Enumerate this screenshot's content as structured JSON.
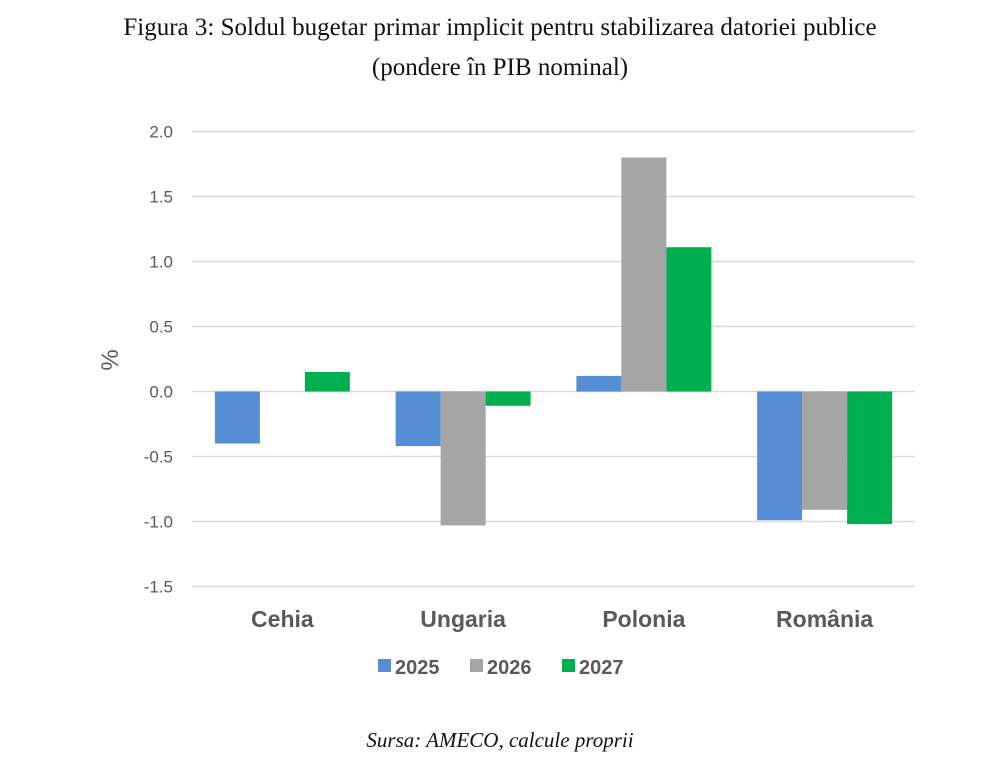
{
  "title_line1": "Figura 3: Soldul bugetar primar implicit pentru stabilizarea datoriei publice",
  "title_line2": "(pondere în PIB nominal)",
  "source": "Sursa: AMECO, calcule proprii",
  "chart_data": {
    "type": "bar",
    "title": "Soldul bugetar primar implicit pentru stabilizarea datoriei publice (pondere în PIB nominal)",
    "xlabel": "",
    "ylabel": "%",
    "ylim": [
      -1.5,
      2.0
    ],
    "yticks": [
      "2.0",
      "1.5",
      "1.0",
      "0.5",
      "0.0",
      "-0.5",
      "-1.0",
      "-1.5"
    ],
    "ytick_values": [
      2.0,
      1.5,
      1.0,
      0.5,
      0.0,
      -0.5,
      -1.0,
      -1.5
    ],
    "grid": true,
    "legend": "bottom",
    "categories": [
      "Cehia",
      "Ungaria",
      "Polonia",
      "România"
    ],
    "series": [
      {
        "name": "2025",
        "color": "#558ED5",
        "values": [
          -0.4,
          -0.42,
          0.12,
          -0.99
        ]
      },
      {
        "name": "2026",
        "color": "#A5A5A5",
        "values": [
          0.0,
          -1.03,
          1.8,
          -0.91
        ]
      },
      {
        "name": "2027",
        "color": "#00B050",
        "values": [
          0.15,
          -0.11,
          1.11,
          -1.02
        ]
      }
    ]
  }
}
